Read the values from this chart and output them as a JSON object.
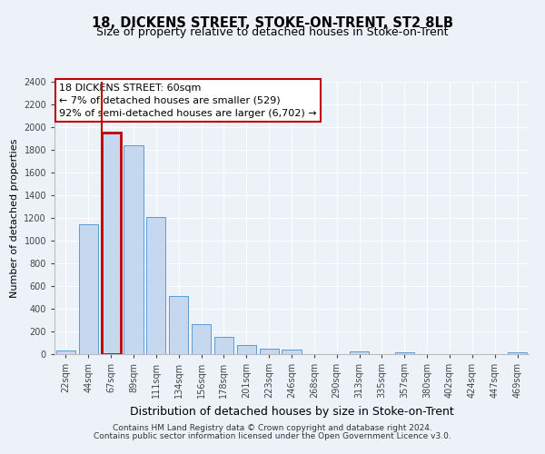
{
  "title1": "18, DICKENS STREET, STOKE-ON-TRENT, ST2 8LB",
  "title2": "Size of property relative to detached houses in Stoke-on-Trent",
  "xlabel": "Distribution of detached houses by size in Stoke-on-Trent",
  "ylabel": "Number of detached properties",
  "categories": [
    "22sqm",
    "44sqm",
    "67sqm",
    "89sqm",
    "111sqm",
    "134sqm",
    "156sqm",
    "178sqm",
    "201sqm",
    "223sqm",
    "246sqm",
    "268sqm",
    "290sqm",
    "313sqm",
    "335sqm",
    "357sqm",
    "380sqm",
    "402sqm",
    "424sqm",
    "447sqm",
    "469sqm"
  ],
  "values": [
    30,
    1145,
    1950,
    1840,
    1210,
    510,
    265,
    155,
    80,
    50,
    42,
    0,
    0,
    22,
    0,
    15,
    0,
    0,
    0,
    0,
    20
  ],
  "bar_color": "#c5d8f0",
  "bar_edge_color": "#5b9bd5",
  "highlight_index": 2,
  "highlight_edge_color": "#c00000",
  "annotation_box_edge": "#c00000",
  "annotation_text_line1": "18 DICKENS STREET: 60sqm",
  "annotation_text_line2": "← 7% of detached houses are smaller (529)",
  "annotation_text_line3": "92% of semi-detached houses are larger (6,702) →",
  "ylim": [
    0,
    2400
  ],
  "yticks": [
    0,
    200,
    400,
    600,
    800,
    1000,
    1200,
    1400,
    1600,
    1800,
    2000,
    2200,
    2400
  ],
  "footer1": "Contains HM Land Registry data © Crown copyright and database right 2024.",
  "footer2": "Contains public sector information licensed under the Open Government Licence v3.0.",
  "bg_color": "#edf2f9",
  "plot_bg_color": "#edf2f9",
  "grid_color": "#ffffff",
  "title1_fontsize": 10.5,
  "title2_fontsize": 9,
  "xlabel_fontsize": 9,
  "ylabel_fontsize": 8,
  "tick_fontsize": 7,
  "annotation_fontsize": 8,
  "footer_fontsize": 6.5
}
